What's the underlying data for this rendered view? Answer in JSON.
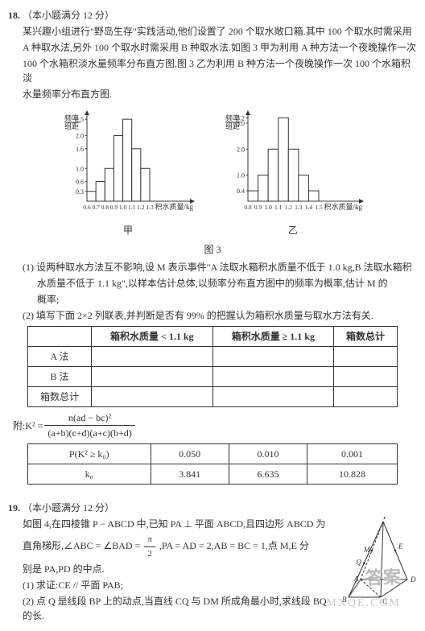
{
  "q18": {
    "num": "18.",
    "points": "（本小题满分 12 分）",
    "stem1": "某兴趣小组进行\"野岛生存\"实践活动,他们设置了 200 个取水敞口箱.其中 100 个取水时需采用",
    "stem2": "A 种取水法,另外 100 个取水时需采用 B 种取水法.如图 3 甲为利用 A 种方法一个夜晚操作一次",
    "stem3": "100 个水箱积淡水量频率分布直方图,图 3 乙为利用 B 种方法一个夜晚操作一次 100 个水箱积淡",
    "stem4": "水量频率分布直方图.",
    "chartA": {
      "ylabel_top": "频率",
      "ylabel_bot": "组距",
      "xlabel": "积水质量/kg",
      "yticks": [
        "0.3",
        "0.6",
        "1.0",
        "1.6",
        "2.0",
        "2.5"
      ],
      "xticks": [
        "0.6",
        "0.7",
        "0.8",
        "0.9",
        "1.0",
        "1.1",
        "1.2",
        "1.3"
      ],
      "bars": [
        0.3,
        0.6,
        1.0,
        2.0,
        2.5,
        1.6,
        1.0
      ],
      "ymax": 2.7,
      "bar_color": "#ffffff",
      "border_color": "#333333",
      "caption": "甲"
    },
    "chartB": {
      "ylabel_top": "频率",
      "ylabel_bot": "组距",
      "xlabel": "积水质量/kg",
      "yticks": [
        "0.4",
        "1.0",
        "2.0",
        "3.0",
        "3.2"
      ],
      "xticks": [
        "0.8",
        "0.9",
        "1.0",
        "1.1",
        "1.2",
        "1.3",
        "1.4",
        "1.5"
      ],
      "bars": [
        0.4,
        1.0,
        2.0,
        3.2,
        2.0,
        1.0,
        0.4
      ],
      "ymax": 3.4,
      "bar_color": "#ffffff",
      "border_color": "#333333",
      "caption": "乙"
    },
    "figcap": "图 3",
    "sub1a": "(1) 设两种取水方法互不影响,设 M 表示事件\"A 法取水箱积水质量不低于 1.0 kg,B 法取水箱积",
    "sub1b": "水质量不低于 1.1 kg\",以样本估计总体,以频率分布直方图中的频率为概率,估计 M 的",
    "sub1c": "概率;",
    "sub2": "(2) 填写下面 2×2 列联表,并判断是否有 99% 的把握认为箱积水质量与取水方法有关.",
    "table1": {
      "h1": "箱积水质量 < 1.1 kg",
      "h2": "箱积水质量 ≥ 1.1 kg",
      "h3": "箱数总计",
      "r1": "A 法",
      "r2": "B 法",
      "r3": "箱数总计"
    },
    "formula_label": "附:K² =",
    "formula_num": "n(ad − bc)²",
    "formula_den": "(a+b)(c+d)(a+c)(b+d)",
    "ktable": {
      "h1": "P(K² ≥ k₀)",
      "h2": "k₀",
      "p": [
        "0.050",
        "0.010",
        "0.001"
      ],
      "k": [
        "3.841",
        "6.635",
        "10.828"
      ]
    }
  },
  "q19": {
    "num": "19.",
    "points": "（本小题满分 12 分）",
    "stem1": "如图 4,在四棱锥 P − ABCD 中,已知 PA ⊥ 平面 ABCD,且四边形 ABCD 为",
    "stem2a": "直角梯形,∠ABC = ∠BAD = ",
    "stem2b": ",PA = AD = 2,AB = BC = 1,点 M,E 分",
    "pi_num": "π",
    "pi_den": "2",
    "stem3": "别是 PA,PD 的中点.",
    "sub1": "(1) 求证:CE // 平面 PAB;",
    "sub2": "(2) 点 Q 是线段 BP 上的动点,当直线 CQ 与 DM 所成角最小时,求线段 BQ 的长.",
    "fig": {
      "P": "P",
      "A": "A",
      "B": "B",
      "C": "C",
      "D": "D",
      "M": "M",
      "E": "E",
      "Q": "Q",
      "stroke": "#333333"
    }
  },
  "watermark1": "答案",
  "watermark2": "MXQE.COM"
}
